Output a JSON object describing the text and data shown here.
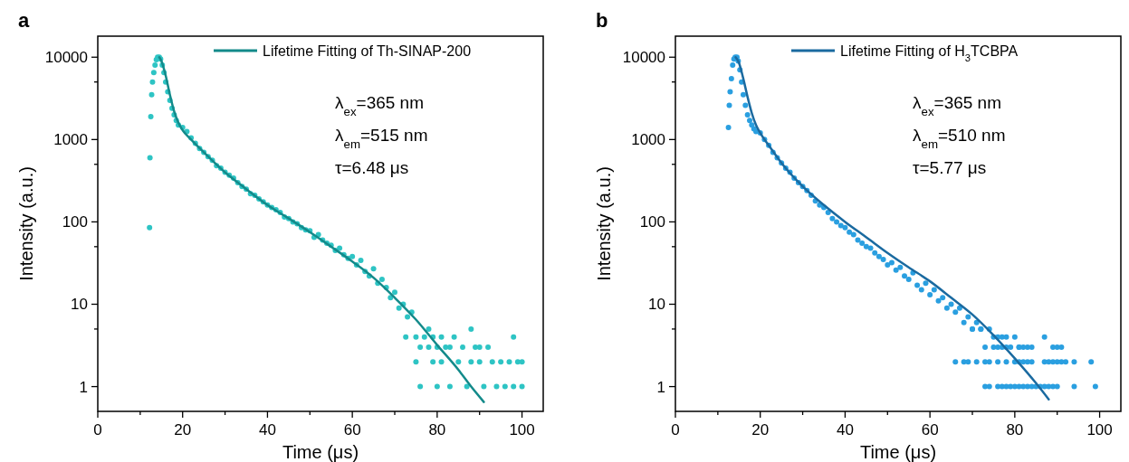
{
  "chart_data": [
    {
      "type": "scatter",
      "title": "a",
      "xlabel": "Time (μs)",
      "ylabel": "Intensity (a.u.)",
      "log": "y",
      "grid": false,
      "legend": "top right",
      "xlim": [
        0,
        105
      ],
      "ylim": [
        0.5,
        18000
      ],
      "xticks": [
        0,
        {
          "value": 10,
          "label": null
        },
        20,
        {
          "value": 30,
          "label": null
        },
        40,
        {
          "value": 50,
          "label": null
        },
        60,
        {
          "value": 70,
          "label": null
        },
        80,
        {
          "value": 90,
          "label": null
        },
        100
      ],
      "yticks": [
        1,
        {
          "value": 5,
          "label": null
        },
        10,
        {
          "value": 50,
          "label": null
        },
        100,
        {
          "value": 500,
          "label": null
        },
        1000,
        {
          "value": 5000,
          "label": null
        },
        10000
      ],
      "annotations": [
        "λ$_{ex}$=365 nm",
        "λ$_{em}$=515 nm",
        "τ=6.48 μs"
      ],
      "series": [
        {
          "marker": "circle",
          "color": "#2ec4c4",
          "x": [
            12.2,
            12.3,
            12.5,
            12.7,
            12.9,
            13.2,
            13.5,
            13.8,
            14.1,
            14.5,
            14.8,
            15.2,
            15.6,
            16,
            16.5,
            17,
            17.5,
            18,
            18.5,
            19,
            20,
            21,
            22,
            23,
            24,
            25,
            26,
            27,
            28,
            29,
            30,
            31,
            32,
            33,
            34,
            35,
            36,
            37,
            38,
            39,
            40,
            41,
            42,
            43,
            44,
            45,
            46,
            47,
            48,
            49,
            50,
            51,
            52,
            53,
            54,
            55,
            56,
            57,
            58,
            59,
            60,
            61,
            62,
            63,
            64,
            65,
            66,
            67,
            68,
            69,
            70,
            71,
            72,
            73,
            74,
            72.6,
            75,
            76,
            77,
            78,
            79,
            81,
            83,
            84,
            88,
            98,
            75,
            76,
            78,
            79,
            80,
            81,
            82,
            83,
            85,
            86,
            87,
            88,
            89,
            90,
            91,
            92,
            93,
            94,
            95,
            96,
            97,
            98,
            99,
            100,
            100,
            80,
            90
          ],
          "values": [
            85,
            600,
            1900,
            3500,
            5000,
            6500,
            8000,
            9300,
            10000,
            10000,
            9500,
            8000,
            6500,
            5000,
            3800,
            3000,
            2400,
            2000,
            1700,
            1500,
            1400,
            1250,
            1050,
            900,
            780,
            700,
            620,
            560,
            480,
            450,
            400,
            370,
            340,
            300,
            270,
            250,
            220,
            210,
            190,
            175,
            160,
            150,
            140,
            130,
            115,
            110,
            100,
            95,
            85,
            80,
            78,
            65,
            70,
            60,
            55,
            52,
            45,
            48,
            40,
            36,
            38,
            30,
            34,
            25,
            22,
            27,
            18,
            20,
            16,
            12,
            14,
            9,
            10,
            7,
            8,
            4,
            4,
            3,
            4,
            5,
            4,
            4,
            3,
            4,
            5,
            4,
            2,
            1,
            3,
            2,
            1,
            2,
            3,
            1,
            2,
            3,
            1,
            2,
            3,
            2,
            1,
            3,
            2,
            1,
            2,
            1,
            2,
            1,
            2,
            2,
            1,
            3,
            3
          ]
        },
        {
          "type": "line",
          "marker": "none",
          "name": "Lifetime Fitting of Th-SINAP-200",
          "color": "#138a8a",
          "x": [
            14.5,
            15,
            16,
            17,
            18,
            19,
            20,
            22,
            25,
            30,
            35,
            40,
            45,
            50,
            55,
            60,
            65,
            70,
            75,
            80,
            85,
            88,
            91
          ],
          "values": [
            10000,
            9000,
            6000,
            3500,
            2200,
            1600,
            1300,
            1000,
            700,
            400,
            250,
            160,
            110,
            75,
            50,
            33,
            21,
            12,
            6.5,
            3.2,
            1.6,
            1,
            0.65
          ]
        }
      ]
    },
    {
      "type": "scatter",
      "title": "b",
      "xlabel": "Time (μs)",
      "ylabel": "Intensity (a.u.)",
      "log": "y",
      "grid": false,
      "legend": "top right",
      "xlim": [
        0,
        105
      ],
      "ylim": [
        0.5,
        18000
      ],
      "xticks": [
        0,
        {
          "value": 10,
          "label": null
        },
        20,
        {
          "value": 30,
          "label": null
        },
        40,
        {
          "value": 50,
          "label": null
        },
        60,
        {
          "value": 70,
          "label": null
        },
        80,
        {
          "value": 90,
          "label": null
        },
        100
      ],
      "yticks": [
        1,
        {
          "value": 5,
          "label": null
        },
        10,
        {
          "value": 50,
          "label": null
        },
        100,
        {
          "value": 500,
          "label": null
        },
        1000,
        {
          "value": 5000,
          "label": null
        },
        10000
      ],
      "annotations": [
        "λ$_{ex}$=365 nm",
        "λ$_{em}$=510 nm",
        "τ=5.77 μs"
      ],
      "series": [
        {
          "marker": "circle",
          "color": "#2a9fe0",
          "x": [
            12.5,
            12.7,
            12.9,
            13.2,
            13.5,
            13.8,
            14.1,
            14.5,
            14.8,
            15.2,
            15.6,
            16,
            16.5,
            17,
            17.5,
            18,
            18.5,
            19,
            20,
            21,
            22,
            23,
            24,
            25,
            26,
            27,
            28,
            29,
            30,
            31,
            32,
            33,
            34,
            35,
            36,
            37,
            38,
            39,
            40,
            41,
            42,
            43,
            44,
            45,
            46,
            47,
            48,
            49,
            50,
            51,
            52,
            53,
            54,
            55,
            56,
            57,
            58,
            59,
            60,
            61,
            62,
            63,
            64,
            65,
            66,
            67,
            68,
            69,
            70,
            71,
            72,
            70,
            72,
            74,
            75,
            76,
            77,
            78,
            80,
            81,
            83,
            87,
            73,
            75,
            76,
            77,
            78,
            79,
            81,
            82,
            84,
            89,
            90,
            91,
            66,
            68,
            69,
            71,
            73,
            74,
            76,
            78,
            80,
            81,
            82,
            83,
            84,
            87,
            88,
            89,
            90,
            91,
            92,
            94,
            98,
            73,
            74,
            76,
            77,
            78,
            79,
            80,
            81,
            82,
            83,
            84,
            85,
            86,
            87,
            88,
            89,
            90,
            94,
            99
          ],
          "values": [
            1400,
            2600,
            3800,
            5500,
            8000,
            9500,
            10000,
            10000,
            9000,
            7000,
            5000,
            3500,
            2600,
            2000,
            1700,
            1500,
            1350,
            1250,
            1200,
            1000,
            850,
            700,
            600,
            520,
            450,
            400,
            340,
            300,
            270,
            240,
            210,
            180,
            160,
            150,
            130,
            110,
            100,
            90,
            85,
            75,
            70,
            60,
            55,
            50,
            48,
            42,
            38,
            35,
            30,
            32,
            26,
            28,
            22,
            20,
            24,
            17,
            15,
            18,
            13,
            15,
            11,
            12,
            9,
            10,
            8,
            9,
            6,
            7,
            5,
            6,
            5,
            5,
            5,
            5,
            4,
            4,
            4,
            4,
            4,
            3,
            3,
            4,
            3,
            3,
            3,
            3,
            3,
            3,
            3,
            3,
            3,
            3,
            3,
            3,
            2,
            2,
            2,
            2,
            2,
            2,
            2,
            2,
            2,
            2,
            2,
            2,
            2,
            2,
            2,
            2,
            2,
            2,
            2,
            2,
            2,
            1,
            1,
            1,
            1,
            1,
            1,
            1,
            1,
            1,
            1,
            1,
            1,
            1,
            1,
            1,
            1,
            1,
            1,
            1
          ]
        },
        {
          "type": "line",
          "marker": "none",
          "name": "Lifetime Fitting of H$_{3}$TCBPA",
          "color": "#1a6aa0",
          "x": [
            14.2,
            15,
            16,
            17,
            18,
            19,
            20,
            22,
            25,
            30,
            35,
            40,
            45,
            50,
            55,
            60,
            65,
            70,
            75,
            80,
            85,
            88
          ],
          "values": [
            10000,
            8500,
            5500,
            3300,
            2100,
            1500,
            1200,
            850,
            520,
            270,
            160,
            100,
            65,
            42,
            28,
            19,
            12,
            7.5,
            4.2,
            2.2,
            1.1,
            0.7
          ]
        }
      ]
    }
  ]
}
